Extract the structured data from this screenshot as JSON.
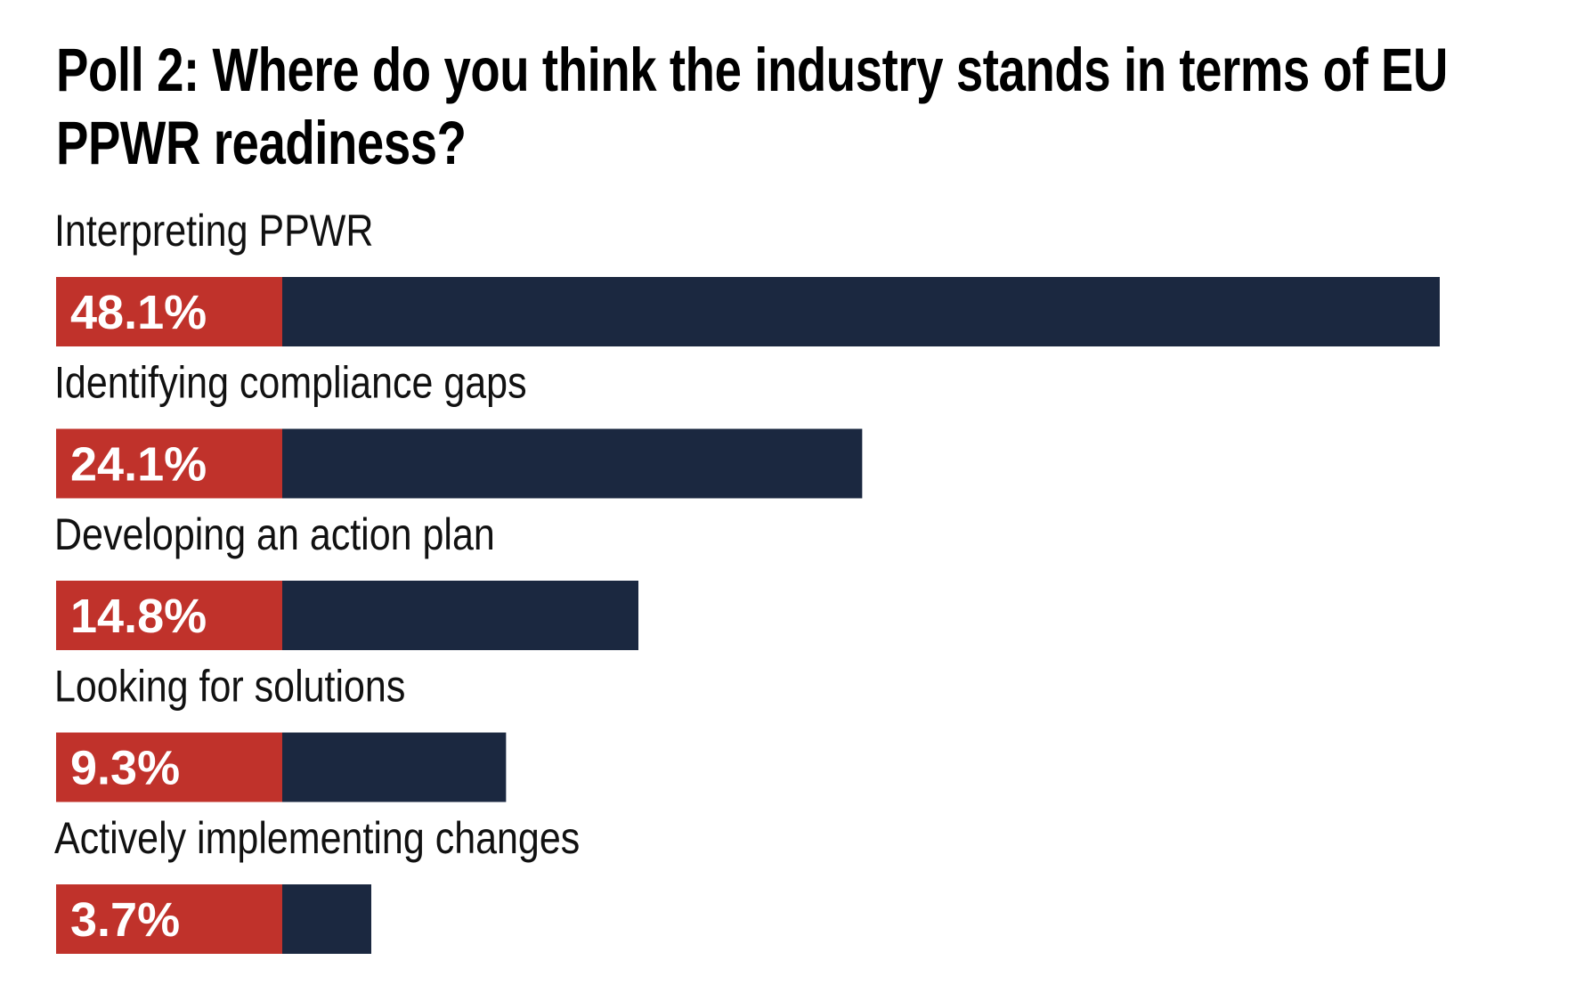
{
  "chart_data": {
    "type": "bar",
    "orientation": "horizontal",
    "title": "Poll 2: Where do you think the industry stands in terms of EU PPWR readiness?",
    "categories": [
      "Interpreting PPWR",
      "Identifying compliance gaps",
      "Developing an action plan",
      "Looking for solutions",
      "Actively implementing changes"
    ],
    "values": [
      48.1,
      24.1,
      14.8,
      9.3,
      3.7
    ],
    "value_labels": [
      "48.1%",
      "24.1%",
      "14.8%",
      "9.3%",
      "3.7%"
    ],
    "color": "#1b2840",
    "label_color": "#c0322b"
  }
}
